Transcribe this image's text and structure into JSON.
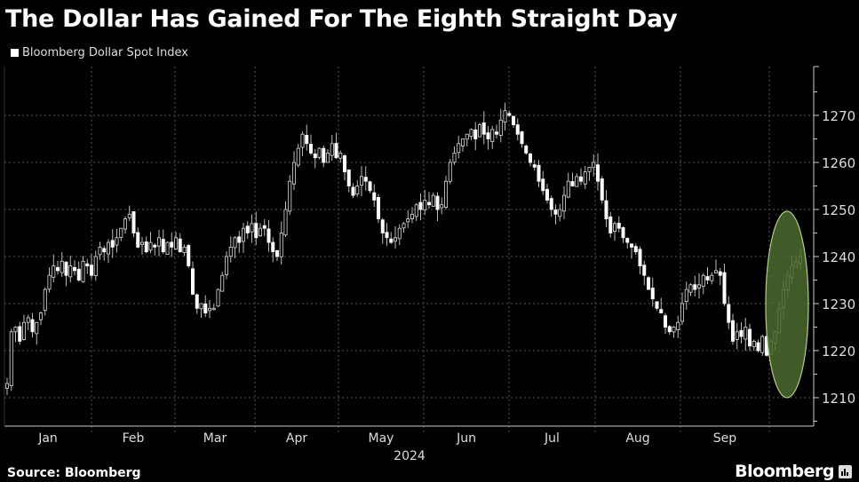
{
  "title": "The Dollar Has Gained For The Eighth Straight Day",
  "source": "Source: Bloomberg",
  "brand": "Bloomberg",
  "chart_data": {
    "type": "candlestick",
    "title": "The Dollar Has Gained For The Eighth Straight Day",
    "legend": [
      "Bloomberg Dollar Spot Index"
    ],
    "xlabel": "2024",
    "x_tick_labels": [
      "Jan",
      "Feb",
      "Mar",
      "Apr",
      "May",
      "Jun",
      "Jul",
      "Aug",
      "Sep"
    ],
    "y_ticks": [
      1210,
      1220,
      1230,
      1240,
      1250,
      1260,
      1270
    ],
    "ylim": [
      1203,
      1275
    ],
    "y_axis_side": "right",
    "grid": true,
    "highlight": {
      "shape": "ellipse",
      "label_region": "last eight sessions (late Sep)",
      "value_range": [
        1210,
        1250
      ]
    },
    "colors": {
      "candle": "#ffffff",
      "highlight_fill": "#4b6a2f",
      "highlight_stroke": "#b5cc8a",
      "grid": "#555555"
    },
    "daily_close": [
      1213,
      1224,
      1225,
      1222,
      1226,
      1227,
      1224,
      1226,
      1228,
      1233,
      1236,
      1238,
      1237,
      1239,
      1236,
      1238,
      1237,
      1235,
      1239,
      1238,
      1236,
      1240,
      1242,
      1241,
      1243,
      1242,
      1244,
      1246,
      1248,
      1249,
      1245,
      1242,
      1243,
      1241,
      1243,
      1242,
      1244,
      1241,
      1243,
      1242,
      1244,
      1241,
      1242,
      1238,
      1232,
      1229,
      1230,
      1228,
      1229,
      1229,
      1233,
      1236,
      1240,
      1242,
      1244,
      1243,
      1246,
      1245,
      1247,
      1244,
      1246,
      1246,
      1243,
      1241,
      1240,
      1245,
      1250,
      1256,
      1260,
      1263,
      1266,
      1264,
      1262,
      1261,
      1263,
      1260,
      1262,
      1264,
      1261,
      1262,
      1258,
      1255,
      1253,
      1255,
      1257,
      1256,
      1254,
      1252,
      1248,
      1245,
      1244,
      1243,
      1244,
      1246,
      1247,
      1248,
      1249,
      1251,
      1250,
      1252,
      1251,
      1253,
      1250,
      1251,
      1256,
      1260,
      1262,
      1264,
      1265,
      1266,
      1267,
      1265,
      1268,
      1266,
      1265,
      1267,
      1266,
      1269,
      1271,
      1270,
      1268,
      1266,
      1264,
      1262,
      1260,
      1259,
      1256,
      1254,
      1252,
      1250,
      1249,
      1250,
      1253,
      1256,
      1255,
      1257,
      1256,
      1258,
      1259,
      1260,
      1256,
      1252,
      1248,
      1245,
      1247,
      1246,
      1244,
      1243,
      1242,
      1241,
      1238,
      1236,
      1233,
      1231,
      1229,
      1228,
      1225,
      1224,
      1225,
      1226,
      1230,
      1233,
      1234,
      1233,
      1234,
      1236,
      1235,
      1236,
      1237,
      1236,
      1230,
      1226,
      1222,
      1224,
      1223,
      1225,
      1221,
      1222,
      1220,
      1223,
      1219,
      1222,
      1224,
      1229,
      1233,
      1236,
      1238,
      1239,
      1240
    ]
  }
}
